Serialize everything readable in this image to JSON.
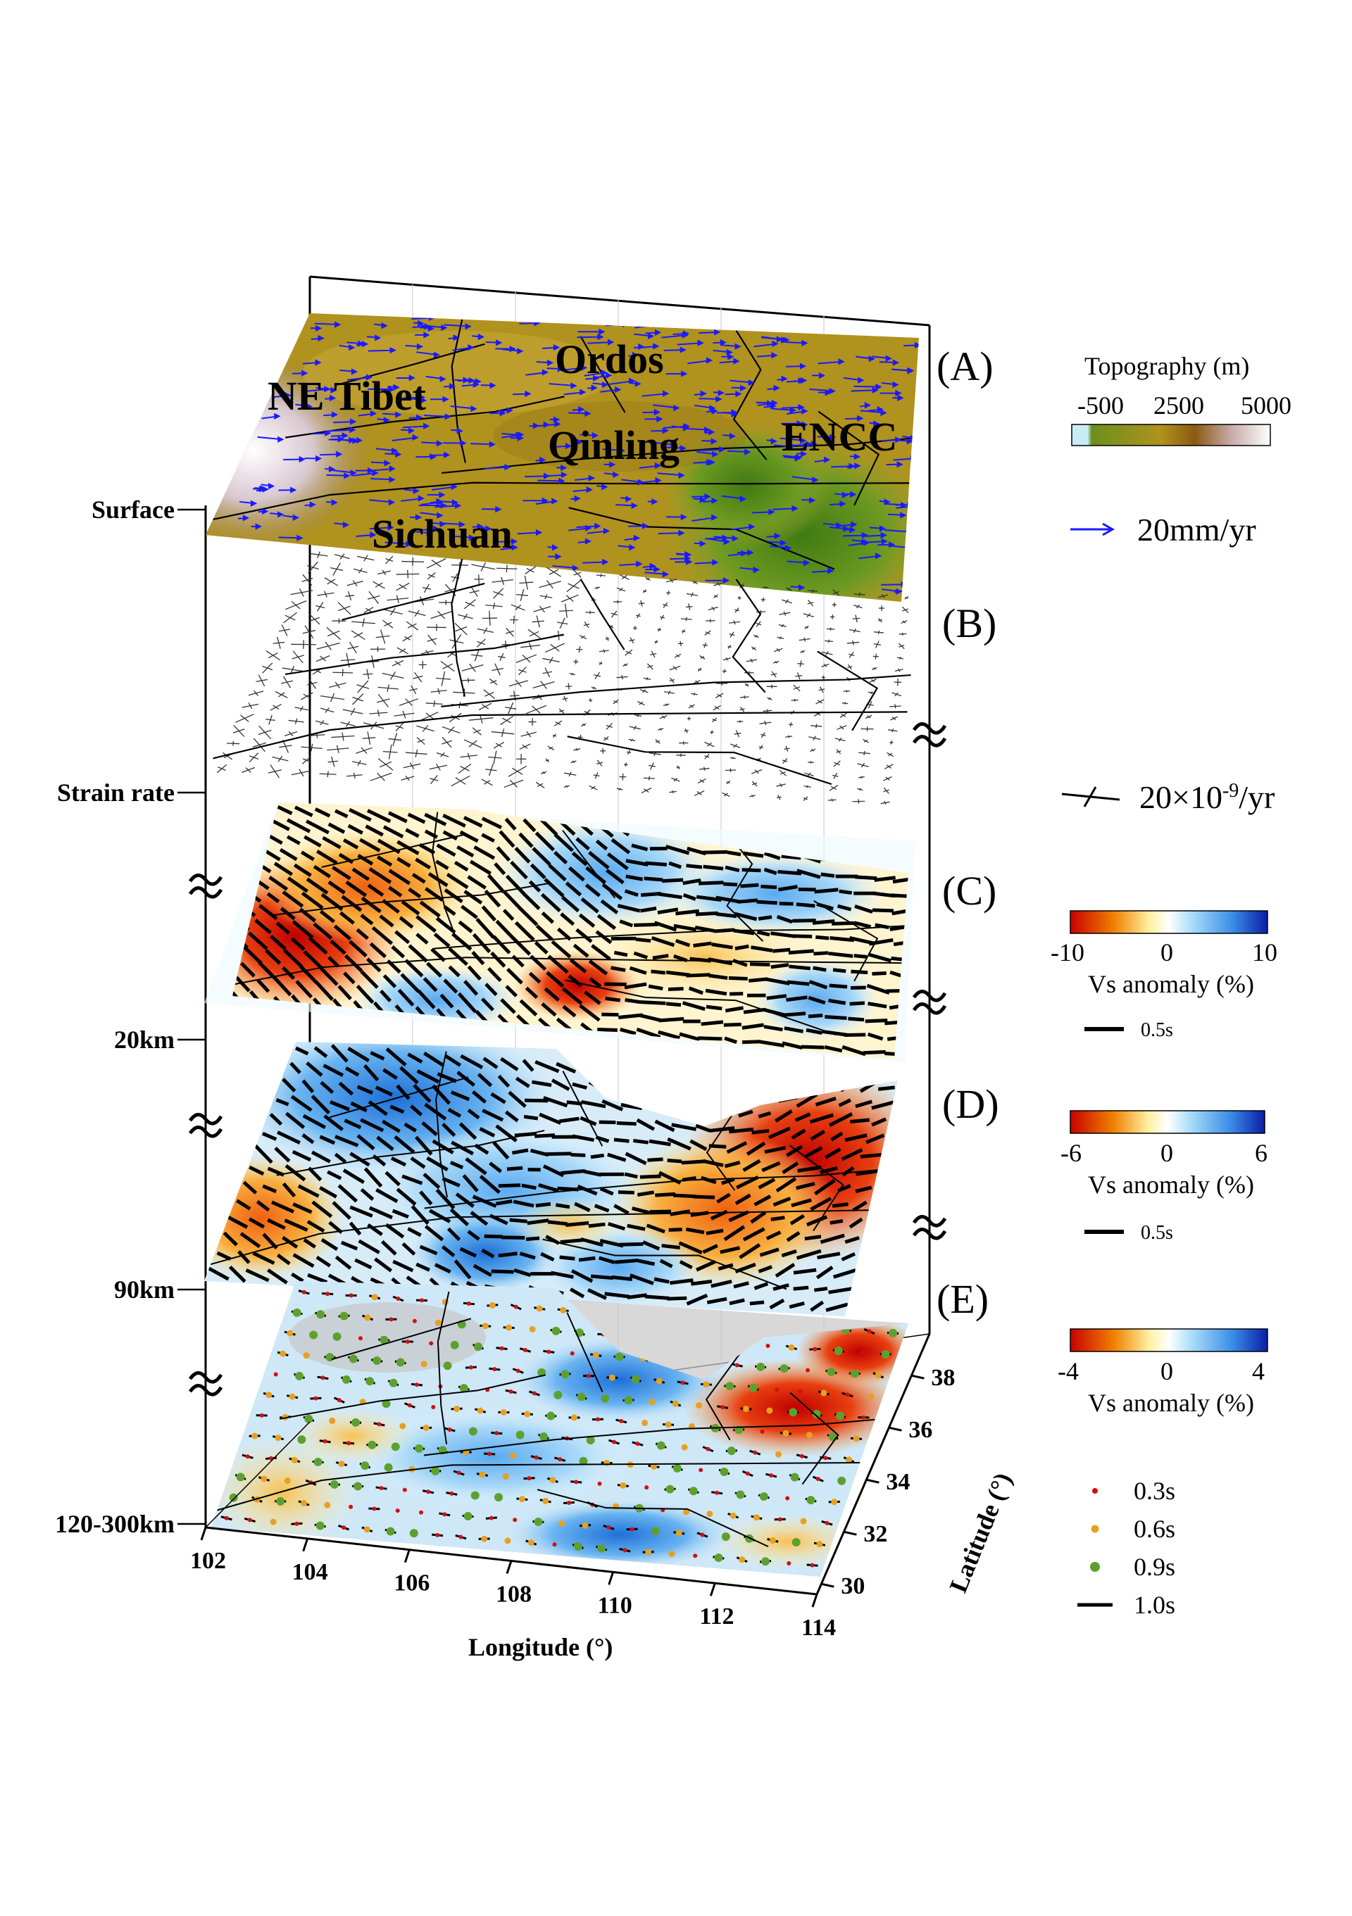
{
  "depths": [
    "Surface",
    "Strain rate",
    "20km",
    "90km",
    "120-300km"
  ],
  "panels": [
    "(A)",
    "(B)",
    "(C)",
    "(D)",
    "(E)"
  ],
  "regions": {
    "ordos": "Ordos",
    "tibet": "NE Tibet",
    "qinling": "Qinling",
    "encc": "ENCC",
    "sichuan": "Sichuan"
  },
  "axes": {
    "longitude_title": "Longitude (°)",
    "latitude_title": "Latitude (°)",
    "longitude_ticks": [
      "102",
      "104",
      "106",
      "108",
      "110",
      "112",
      "114"
    ],
    "latitude_ticks": [
      "30",
      "32",
      "34",
      "36",
      "38"
    ]
  },
  "legends": {
    "topography": {
      "title": "Topography (m)",
      "ticks": [
        "-500",
        "2500",
        "5000"
      ],
      "colors": [
        "#c8ecf6",
        "#6b8f1e",
        "#b0921e",
        "#8a5a10",
        "#c8a8a8",
        "#ffffff"
      ]
    },
    "gps": {
      "label": "20mm/yr",
      "color": "#1a1aff"
    },
    "strain": {
      "label_base": "20×10",
      "label_exp": "-9",
      "label_unit": "/yr"
    },
    "vs_c": {
      "ticks": [
        "-10",
        "0",
        "10"
      ],
      "title": "Vs anomaly (%)",
      "bar_label": "0.5s"
    },
    "vs_d": {
      "ticks": [
        "-6",
        "0",
        "6"
      ],
      "title": "Vs anomaly (%)",
      "bar_label": "0.5s"
    },
    "vs_e": {
      "ticks": [
        "-4",
        "0",
        "4"
      ],
      "title": "Vs anomaly (%)"
    },
    "vs_colors": [
      "#c80000",
      "#f08000",
      "#fff0a0",
      "#ffffff",
      "#a8dcf8",
      "#3a8ee8",
      "#0a1ea8"
    ],
    "splitting": [
      {
        "label": "0.3s",
        "color": "#d01010"
      },
      {
        "label": "0.6s",
        "color": "#e8a020"
      },
      {
        "label": "0.9s",
        "color": "#5ea030"
      },
      {
        "label": "1.0s",
        "color": "#000000"
      }
    ]
  }
}
